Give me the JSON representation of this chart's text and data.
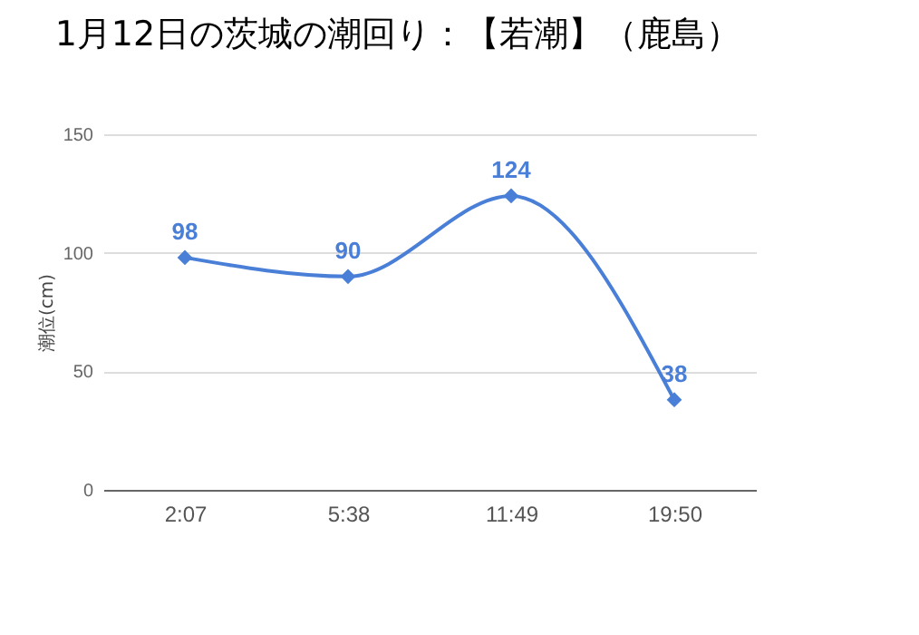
{
  "chart_data": {
    "type": "line",
    "title": "1月12日の茨城の潮回り：【若潮】（鹿島）",
    "ylabel": "潮位(cm)",
    "categories": [
      "2:07",
      "5:38",
      "11:49",
      "19:50"
    ],
    "series": [
      {
        "color": "#4a7fd8",
        "values": [
          98,
          90,
          124,
          38
        ]
      }
    ],
    "ylim": [
      0,
      150
    ],
    "yticks": [
      0,
      50,
      100,
      150
    ],
    "grid": "y",
    "marker": "diamond",
    "data_labels": true
  }
}
